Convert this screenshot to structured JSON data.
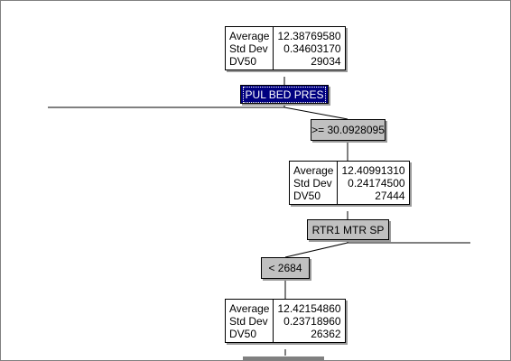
{
  "nodes": [
    {
      "labels": [
        "Average",
        "Std Dev",
        "DV50"
      ],
      "values": [
        "12.38769580",
        "0.34603170",
        "29034"
      ]
    },
    {
      "labels": [
        "Average",
        "Std Dev",
        "DV50"
      ],
      "values": [
        "12.40991310",
        "0.24174500",
        "27444"
      ]
    },
    {
      "labels": [
        "Average",
        "Std Dev",
        "DV50"
      ],
      "values": [
        "12.42154860",
        "0.23718960",
        "26362"
      ]
    }
  ],
  "splits": {
    "first": "PUL BED PRES",
    "second": "RTR1 MTR SP"
  },
  "conditions": {
    "first": ">= 30.0928095",
    "second": "< 2684"
  }
}
